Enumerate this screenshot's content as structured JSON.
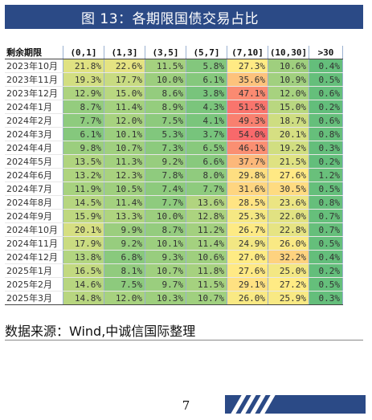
{
  "title": "图 13：各期限国债交易占比",
  "table": {
    "headers": [
      "剩余期限",
      "(0,1]",
      "(1,3]",
      "(3,5]",
      "(5,7]",
      "(7,10]",
      "(10,30]",
      ">30"
    ],
    "rows": [
      {
        "label": "2023年10月",
        "values": [
          "21.8%",
          "22.6%",
          "11.5%",
          "5.8%",
          "27.3%",
          "10.6%",
          "0.4%"
        ]
      },
      {
        "label": "2023年11月",
        "values": [
          "19.3%",
          "17.7%",
          "10.0%",
          "6.1%",
          "35.6%",
          "10.9%",
          "0.5%"
        ]
      },
      {
        "label": "2023年12月",
        "values": [
          "12.9%",
          "15.0%",
          "8.6%",
          "3.8%",
          "47.1%",
          "12.0%",
          "0.6%"
        ]
      },
      {
        "label": "2024年1月",
        "values": [
          "8.7%",
          "11.4%",
          "8.9%",
          "4.3%",
          "51.5%",
          "15.0%",
          "0.2%"
        ]
      },
      {
        "label": "2024年2月",
        "values": [
          "7.7%",
          "12.0%",
          "7.5%",
          "4.1%",
          "49.3%",
          "18.7%",
          "0.6%"
        ]
      },
      {
        "label": "2024年3月",
        "values": [
          "6.1%",
          "10.1%",
          "5.3%",
          "3.7%",
          "54.0%",
          "20.1%",
          "0.8%"
        ]
      },
      {
        "label": "2024年4月",
        "values": [
          "9.8%",
          "10.7%",
          "7.3%",
          "6.5%",
          "46.1%",
          "19.2%",
          "0.3%"
        ]
      },
      {
        "label": "2024年5月",
        "values": [
          "13.5%",
          "11.3%",
          "9.2%",
          "6.6%",
          "37.7%",
          "21.5%",
          "0.2%"
        ]
      },
      {
        "label": "2024年6月",
        "values": [
          "13.2%",
          "12.3%",
          "7.8%",
          "8.0%",
          "29.8%",
          "27.6%",
          "1.2%"
        ]
      },
      {
        "label": "2024年7月",
        "values": [
          "11.9%",
          "10.5%",
          "7.4%",
          "7.7%",
          "31.6%",
          "30.5%",
          "0.5%"
        ]
      },
      {
        "label": "2024年8月",
        "values": [
          "14.5%",
          "11.4%",
          "7.7%",
          "13.6%",
          "28.5%",
          "23.6%",
          "0.8%"
        ]
      },
      {
        "label": "2024年9月",
        "values": [
          "15.9%",
          "13.3%",
          "10.0%",
          "12.8%",
          "25.3%",
          "22.0%",
          "0.7%"
        ]
      },
      {
        "label": "2024年10月",
        "values": [
          "20.1%",
          "9.9%",
          "8.7%",
          "11.2%",
          "26.7%",
          "22.8%",
          "0.7%"
        ]
      },
      {
        "label": "2024年11月",
        "values": [
          "17.9%",
          "9.2%",
          "10.1%",
          "11.4%",
          "24.9%",
          "26.0%",
          "0.5%"
        ]
      },
      {
        "label": "2024年12月",
        "values": [
          "13.8%",
          "6.8%",
          "9.3%",
          "10.6%",
          "27.0%",
          "32.2%",
          "0.4%"
        ]
      },
      {
        "label": "2025年1月",
        "values": [
          "16.5%",
          "8.1%",
          "10.7%",
          "11.8%",
          "27.6%",
          "25.0%",
          "0.2%"
        ]
      },
      {
        "label": "2025年2月",
        "values": [
          "14.6%",
          "7.5%",
          "9.7%",
          "11.5%",
          "29.1%",
          "27.2%",
          "0.5%"
        ]
      },
      {
        "label": "2025年3月",
        "values": [
          "14.8%",
          "12.0%",
          "10.3%",
          "10.7%",
          "26.0%",
          "25.9%",
          "0.3%"
        ]
      }
    ]
  },
  "source": "数据来源：Wind,中诚信国际整理",
  "page_number": "7",
  "colors": {
    "title_bar": "#2b4a86",
    "heat_low": "#63be7b",
    "heat_mid": "#ffeb84",
    "heat_high": "#f8696b"
  }
}
